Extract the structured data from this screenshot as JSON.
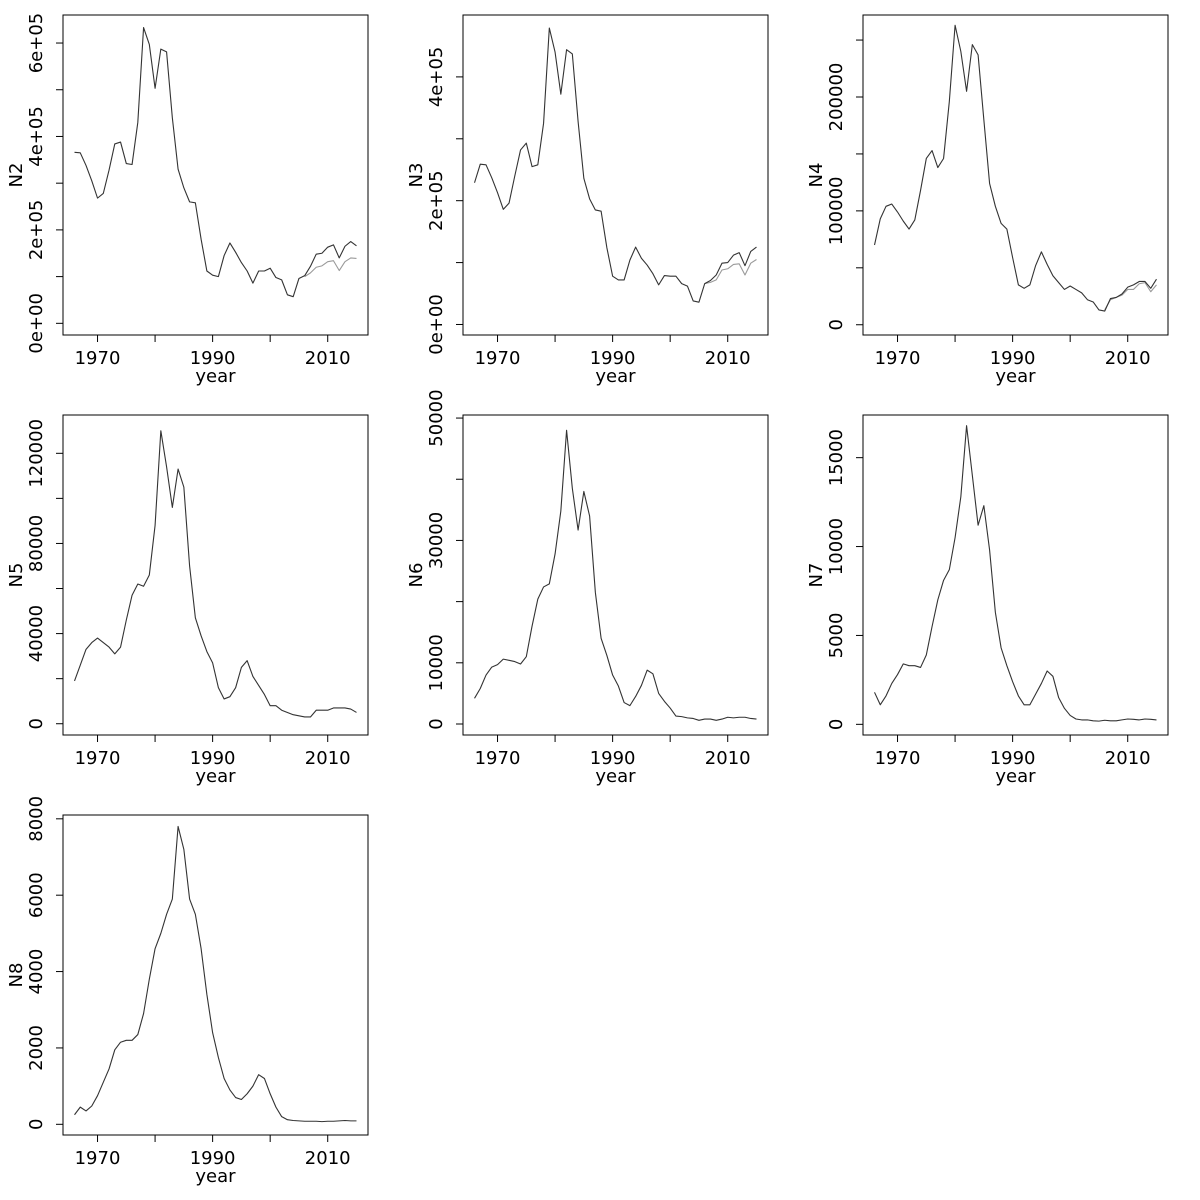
{
  "colors": {
    "background": "#ffffff",
    "axes": "#000000",
    "series_main": "#333333",
    "series_alt": "#9a9a9a"
  },
  "chart_data": [
    {
      "type": "line",
      "ylabel": "N2",
      "xlabel": "year",
      "xlim": [
        1964,
        2017
      ],
      "ylim": [
        -25000,
        660000
      ],
      "xticks": [
        1970,
        1980,
        1990,
        2000,
        2010
      ],
      "xtick_labels": [
        "1970",
        "",
        "1990",
        "",
        "2010"
      ],
      "yticks": [
        0,
        100000,
        200000,
        300000,
        400000,
        500000,
        600000
      ],
      "ytick_labels": [
        "0e+00",
        "",
        "2e+05",
        "",
        "4e+05",
        "",
        "6e+05"
      ],
      "series": [
        {
          "x": [
            1966,
            1967,
            1968,
            1969,
            1970,
            1971,
            1972,
            1973,
            1974,
            1975,
            1976,
            1977,
            1978,
            1979,
            1980,
            1981,
            1982,
            1983,
            1984,
            1985,
            1986,
            1987,
            1988,
            1989,
            1990,
            1991,
            1992,
            1993,
            1994,
            1995,
            1996,
            1997,
            1998,
            1999,
            2000,
            2001,
            2002,
            2003,
            2004,
            2005,
            2006,
            2007,
            2008,
            2009,
            2010,
            2011,
            2012,
            2013,
            2014,
            2015
          ],
          "values": [
            366000,
            365000,
            338000,
            305000,
            268000,
            278000,
            328000,
            384000,
            388000,
            342000,
            340000,
            430000,
            633000,
            597000,
            503000,
            587000,
            581000,
            440000,
            330000,
            290000,
            260000,
            258000,
            180000,
            112000,
            103000,
            100000,
            145000,
            172000,
            152000,
            130000,
            112000,
            86000,
            112000,
            112000,
            118000,
            98000,
            93000,
            61000,
            57000,
            96000,
            102000,
            122000,
            148000,
            150000,
            163000,
            168000,
            140000,
            165000,
            175000,
            166000
          ]
        },
        {
          "x": [
            2006,
            2007,
            2008,
            2009,
            2010,
            2011,
            2012,
            2013,
            2014,
            2015
          ],
          "values": [
            100000,
            108000,
            120000,
            123000,
            132000,
            134000,
            113000,
            132000,
            140000,
            139000
          ]
        }
      ]
    },
    {
      "type": "line",
      "ylabel": "N3",
      "xlabel": "year",
      "xlim": [
        1964,
        2017
      ],
      "ylim": [
        -17000,
        500000
      ],
      "xticks": [
        1970,
        1980,
        1990,
        2000,
        2010
      ],
      "xtick_labels": [
        "1970",
        "",
        "1990",
        "",
        "2010"
      ],
      "yticks": [
        0,
        100000,
        200000,
        300000,
        400000
      ],
      "ytick_labels": [
        "0e+00",
        "",
        "2e+05",
        "",
        "4e+05"
      ],
      "series": [
        {
          "x": [
            1966,
            1967,
            1968,
            1969,
            1970,
            1971,
            1972,
            1973,
            1974,
            1975,
            1976,
            1977,
            1978,
            1979,
            1980,
            1981,
            1982,
            1983,
            1984,
            1985,
            1986,
            1987,
            1988,
            1989,
            1990,
            1991,
            1992,
            1993,
            1994,
            1995,
            1996,
            1997,
            1998,
            1999,
            2000,
            2001,
            2002,
            2003,
            2004,
            2005,
            2006,
            2007,
            2008,
            2009,
            2010,
            2011,
            2012,
            2013,
            2014,
            2015
          ],
          "values": [
            229000,
            259000,
            258000,
            237000,
            213000,
            186000,
            196000,
            240000,
            282000,
            293000,
            255000,
            258000,
            325000,
            479000,
            440000,
            372000,
            444000,
            437000,
            328000,
            236000,
            203000,
            185000,
            183000,
            124000,
            78000,
            72000,
            72000,
            104000,
            125000,
            107000,
            96000,
            82000,
            64000,
            79000,
            78000,
            78000,
            66000,
            62000,
            38000,
            36000,
            66000,
            71000,
            80000,
            99000,
            100000,
            112000,
            116000,
            95000,
            118000,
            125000
          ]
        },
        {
          "x": [
            2006,
            2007,
            2008,
            2009,
            2010,
            2011,
            2012,
            2013,
            2014,
            2015
          ],
          "values": [
            66000,
            68000,
            72000,
            88000,
            90000,
            97000,
            98000,
            80000,
            99000,
            105000
          ]
        }
      ]
    },
    {
      "type": "line",
      "ylabel": "N4",
      "xlabel": "year",
      "xlim": [
        1964,
        2017
      ],
      "ylim": [
        -9000,
        272000
      ],
      "xticks": [
        1970,
        1980,
        1990,
        2000,
        2010
      ],
      "xtick_labels": [
        "1970",
        "",
        "1990",
        "",
        "2010"
      ],
      "yticks": [
        0,
        50000,
        100000,
        150000,
        200000,
        250000
      ],
      "ytick_labels": [
        "0",
        "",
        "100000",
        "",
        "200000",
        ""
      ],
      "series": [
        {
          "x": [
            1966,
            1967,
            1968,
            1969,
            1970,
            1971,
            1972,
            1973,
            1974,
            1975,
            1976,
            1977,
            1978,
            1979,
            1980,
            1981,
            1982,
            1983,
            1984,
            1985,
            1986,
            1987,
            1988,
            1989,
            1990,
            1991,
            1992,
            1993,
            1994,
            1995,
            1996,
            1997,
            1998,
            1999,
            2000,
            2001,
            2002,
            2003,
            2004,
            2005,
            2006,
            2007,
            2008,
            2009,
            2010,
            2011,
            2012,
            2013,
            2014,
            2015
          ],
          "values": [
            70000,
            93000,
            104000,
            106000,
            99000,
            91000,
            84000,
            92000,
            118000,
            146000,
            153000,
            138000,
            146000,
            196000,
            263000,
            240000,
            205000,
            246000,
            237000,
            180000,
            124000,
            104000,
            89000,
            84000,
            59000,
            35000,
            32000,
            35000,
            52000,
            64000,
            53000,
            43000,
            37000,
            31000,
            34000,
            31000,
            28000,
            22000,
            20000,
            13000,
            12000,
            23000,
            24000,
            27000,
            33000,
            35000,
            38000,
            38000,
            32000,
            40000
          ]
        },
        {
          "x": [
            2006,
            2007,
            2008,
            2009,
            2010,
            2011,
            2012,
            2013,
            2014,
            2015
          ],
          "values": [
            13000,
            22000,
            24000,
            26000,
            31000,
            31000,
            36000,
            37000,
            29000,
            35000
          ]
        }
      ]
    },
    {
      "type": "line",
      "ylabel": "N5",
      "xlabel": "year",
      "xlim": [
        1964,
        2017
      ],
      "ylim": [
        -5000,
        137000
      ],
      "xticks": [
        1970,
        1980,
        1990,
        2000,
        2010
      ],
      "xtick_labels": [
        "1970",
        "",
        "1990",
        "",
        "2010"
      ],
      "yticks": [
        0,
        20000,
        40000,
        60000,
        80000,
        100000,
        120000
      ],
      "ytick_labels": [
        "0",
        "",
        "40000",
        "",
        "80000",
        "",
        "120000"
      ],
      "series": [
        {
          "x": [
            1966,
            1967,
            1968,
            1969,
            1970,
            1971,
            1972,
            1973,
            1974,
            1975,
            1976,
            1977,
            1978,
            1979,
            1980,
            1981,
            1982,
            1983,
            1984,
            1985,
            1986,
            1987,
            1988,
            1989,
            1990,
            1991,
            1992,
            1993,
            1994,
            1995,
            1996,
            1997,
            1998,
            1999,
            2000,
            2001,
            2002,
            2003,
            2004,
            2005,
            2006,
            2007,
            2008,
            2009,
            2010,
            2011,
            2012,
            2013,
            2014,
            2015
          ],
          "values": [
            19000,
            26000,
            33000,
            36000,
            38000,
            36000,
            34000,
            31000,
            34000,
            46000,
            57000,
            62000,
            61000,
            66000,
            88000,
            130000,
            114000,
            96000,
            113000,
            105000,
            70000,
            47000,
            39000,
            32000,
            27000,
            16000,
            11000,
            12000,
            16000,
            25000,
            28000,
            21000,
            17000,
            13000,
            8000,
            8000,
            6000,
            5000,
            4000,
            3500,
            3000,
            3000,
            6000,
            6000,
            6000,
            7000,
            7000,
            7000,
            6500,
            5000
          ]
        }
      ]
    },
    {
      "type": "line",
      "ylabel": "N6",
      "xlabel": "year",
      "xlim": [
        1964,
        2017
      ],
      "ylim": [
        -1800,
        50500
      ],
      "xticks": [
        1970,
        1980,
        1990,
        2000,
        2010
      ],
      "xtick_labels": [
        "1970",
        "",
        "1990",
        "",
        "2010"
      ],
      "yticks": [
        0,
        10000,
        20000,
        30000,
        40000,
        50000
      ],
      "ytick_labels": [
        "0",
        "10000",
        "",
        "30000",
        "",
        "50000"
      ],
      "series": [
        {
          "x": [
            1966,
            1967,
            1968,
            1969,
            1970,
            1971,
            1972,
            1973,
            1974,
            1975,
            1976,
            1977,
            1978,
            1979,
            1980,
            1981,
            1982,
            1983,
            1984,
            1985,
            1986,
            1987,
            1988,
            1989,
            1990,
            1991,
            1992,
            1993,
            1994,
            1995,
            1996,
            1997,
            1998,
            1999,
            2000,
            2001,
            2002,
            2003,
            2004,
            2005,
            2006,
            2007,
            2008,
            2009,
            2010,
            2011,
            2012,
            2013,
            2014,
            2015
          ],
          "values": [
            4200,
            5800,
            8000,
            9300,
            9700,
            10600,
            10400,
            10200,
            9800,
            11000,
            16000,
            20400,
            22400,
            22900,
            27800,
            34800,
            48000,
            38500,
            31700,
            38000,
            34000,
            21500,
            14000,
            11200,
            8000,
            6200,
            3500,
            3000,
            4500,
            6300,
            8800,
            8200,
            5000,
            3700,
            2600,
            1300,
            1200,
            1000,
            900,
            600,
            800,
            800,
            600,
            800,
            1100,
            1000,
            1100,
            1100,
            900,
            800
          ]
        }
      ]
    },
    {
      "type": "line",
      "ylabel": "N7",
      "xlabel": "year",
      "xlim": [
        1964,
        2017
      ],
      "ylim": [
        -600,
        17400
      ],
      "xticks": [
        1970,
        1980,
        1990,
        2000,
        2010
      ],
      "xtick_labels": [
        "1970",
        "",
        "1990",
        "",
        "2010"
      ],
      "yticks": [
        0,
        5000,
        10000,
        15000
      ],
      "ytick_labels": [
        "0",
        "5000",
        "10000",
        "15000"
      ],
      "series": [
        {
          "x": [
            1966,
            1967,
            1968,
            1969,
            1970,
            1971,
            1972,
            1973,
            1974,
            1975,
            1976,
            1977,
            1978,
            1979,
            1980,
            1981,
            1982,
            1983,
            1984,
            1985,
            1986,
            1987,
            1988,
            1989,
            1990,
            1991,
            1992,
            1993,
            1994,
            1995,
            1996,
            1997,
            1998,
            1999,
            2000,
            2001,
            2002,
            2003,
            2004,
            2005,
            2006,
            2007,
            2008,
            2009,
            2010,
            2011,
            2012,
            2013,
            2014,
            2015
          ],
          "values": [
            1800,
            1100,
            1600,
            2300,
            2800,
            3400,
            3300,
            3300,
            3200,
            3900,
            5500,
            7000,
            8100,
            8700,
            10500,
            12800,
            16800,
            14000,
            11200,
            12300,
            9800,
            6300,
            4300,
            3300,
            2400,
            1600,
            1100,
            1100,
            1700,
            2300,
            3000,
            2700,
            1500,
            900,
            500,
            300,
            250,
            250,
            200,
            180,
            230,
            200,
            200,
            250,
            300,
            280,
            250,
            300,
            280,
            250
          ]
        }
      ]
    },
    {
      "type": "line",
      "ylabel": "N8",
      "xlabel": "year",
      "xlim": [
        1964,
        2017
      ],
      "ylim": [
        -280,
        8100
      ],
      "xticks": [
        1970,
        1980,
        1990,
        2000,
        2010
      ],
      "xtick_labels": [
        "1970",
        "",
        "1990",
        "",
        "2010"
      ],
      "yticks": [
        0,
        2000,
        4000,
        6000,
        8000
      ],
      "ytick_labels": [
        "0",
        "2000",
        "4000",
        "6000",
        "8000"
      ],
      "series": [
        {
          "x": [
            1966,
            1967,
            1968,
            1969,
            1970,
            1971,
            1972,
            1973,
            1974,
            1975,
            1976,
            1977,
            1978,
            1979,
            1980,
            1981,
            1982,
            1983,
            1984,
            1985,
            1986,
            1987,
            1988,
            1989,
            1990,
            1991,
            1992,
            1993,
            1994,
            1995,
            1996,
            1997,
            1998,
            1999,
            2000,
            2001,
            2002,
            2003,
            2004,
            2005,
            2006,
            2007,
            2008,
            2009,
            2010,
            2011,
            2012,
            2013,
            2014,
            2015
          ],
          "values": [
            250,
            450,
            350,
            480,
            750,
            1100,
            1450,
            1950,
            2150,
            2200,
            2200,
            2350,
            2900,
            3800,
            4600,
            5000,
            5500,
            5900,
            7800,
            7200,
            5900,
            5500,
            4600,
            3400,
            2400,
            1750,
            1200,
            900,
            700,
            650,
            800,
            1000,
            1300,
            1200,
            800,
            450,
            200,
            120,
            100,
            90,
            80,
            80,
            80,
            70,
            80,
            80,
            90,
            100,
            90,
            90
          ]
        }
      ]
    }
  ]
}
